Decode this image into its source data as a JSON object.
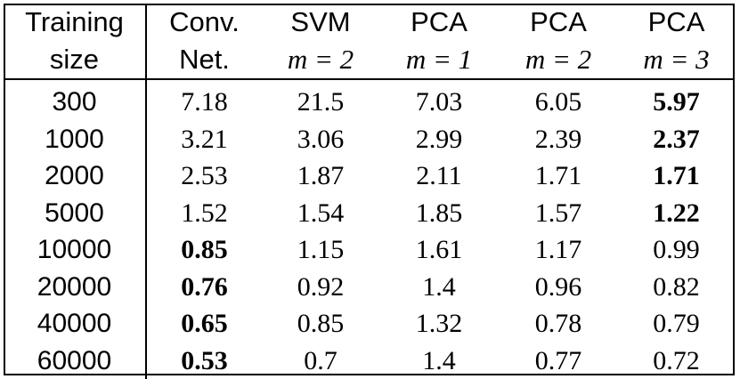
{
  "header": {
    "row1": [
      "Training",
      "Conv.",
      "SVM",
      "PCA",
      "PCA",
      "PCA"
    ],
    "row2": [
      "size",
      "Net.",
      "m = 2",
      "m = 1",
      "m = 2",
      "m = 3"
    ]
  },
  "rows": [
    {
      "size": "300",
      "cells": [
        "7.18",
        "21.5",
        "7.03",
        "6.05",
        "5.97"
      ],
      "bold": 4
    },
    {
      "size": "1000",
      "cells": [
        "3.21",
        "3.06",
        "2.99",
        "2.39",
        "2.37"
      ],
      "bold": 4
    },
    {
      "size": "2000",
      "cells": [
        "2.53",
        "1.87",
        "2.11",
        "1.71",
        "1.71"
      ],
      "bold": 4
    },
    {
      "size": "5000",
      "cells": [
        "1.52",
        "1.54",
        "1.85",
        "1.57",
        "1.22"
      ],
      "bold": 4
    },
    {
      "size": "10000",
      "cells": [
        "0.85",
        "1.15",
        "1.61",
        "1.17",
        "0.99"
      ],
      "bold": 0
    },
    {
      "size": "20000",
      "cells": [
        "0.76",
        "0.92",
        "1.4",
        "0.96",
        "0.82"
      ],
      "bold": 0
    },
    {
      "size": "40000",
      "cells": [
        "0.65",
        "0.85",
        "1.32",
        "0.78",
        "0.79"
      ],
      "bold": 0
    },
    {
      "size": "60000",
      "cells": [
        "0.53",
        "0.7",
        "1.4",
        "0.77",
        "0.72"
      ],
      "bold": 0
    }
  ]
}
